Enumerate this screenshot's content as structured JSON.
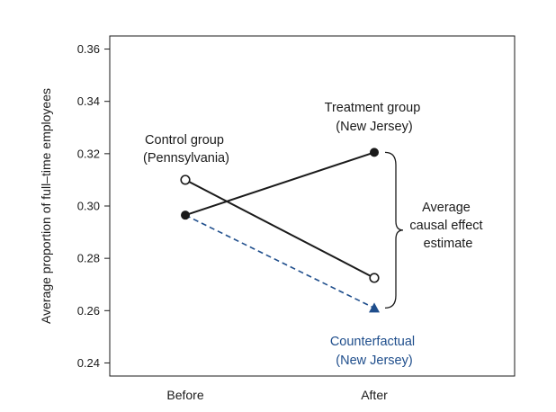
{
  "chart_data": {
    "type": "line",
    "title": "",
    "xlabel": "",
    "ylabel": "Average proportion of full–time employees",
    "categories": [
      "Before",
      "After"
    ],
    "ylim": [
      0.235,
      0.365
    ],
    "yticks": [
      "0.24",
      "0.26",
      "0.28",
      "0.30",
      "0.32",
      "0.34",
      "0.36"
    ],
    "grid": false,
    "series": [
      {
        "key": "treatment",
        "values": [
          0.2965,
          0.3205
        ],
        "color": "#1a1a1a",
        "marker": "filled-circle",
        "line": "solid"
      },
      {
        "key": "control",
        "values": [
          0.31,
          0.2725
        ],
        "color": "#1a1a1a",
        "marker": "open-circle",
        "line": "solid"
      },
      {
        "key": "counterfactual",
        "values": [
          0.2965,
          0.261
        ],
        "color": "#1f4e8c",
        "marker": "triangle",
        "line": "dashed"
      }
    ],
    "annotations": {
      "control": [
        "Control group",
        "(Pennsylvania)"
      ],
      "treatment": [
        "Treatment group",
        "(New Jersey)"
      ],
      "counterfactual": [
        "Counterfactual",
        "(New Jersey)"
      ],
      "effect": [
        "Average",
        "causal effect",
        "estimate"
      ]
    }
  }
}
